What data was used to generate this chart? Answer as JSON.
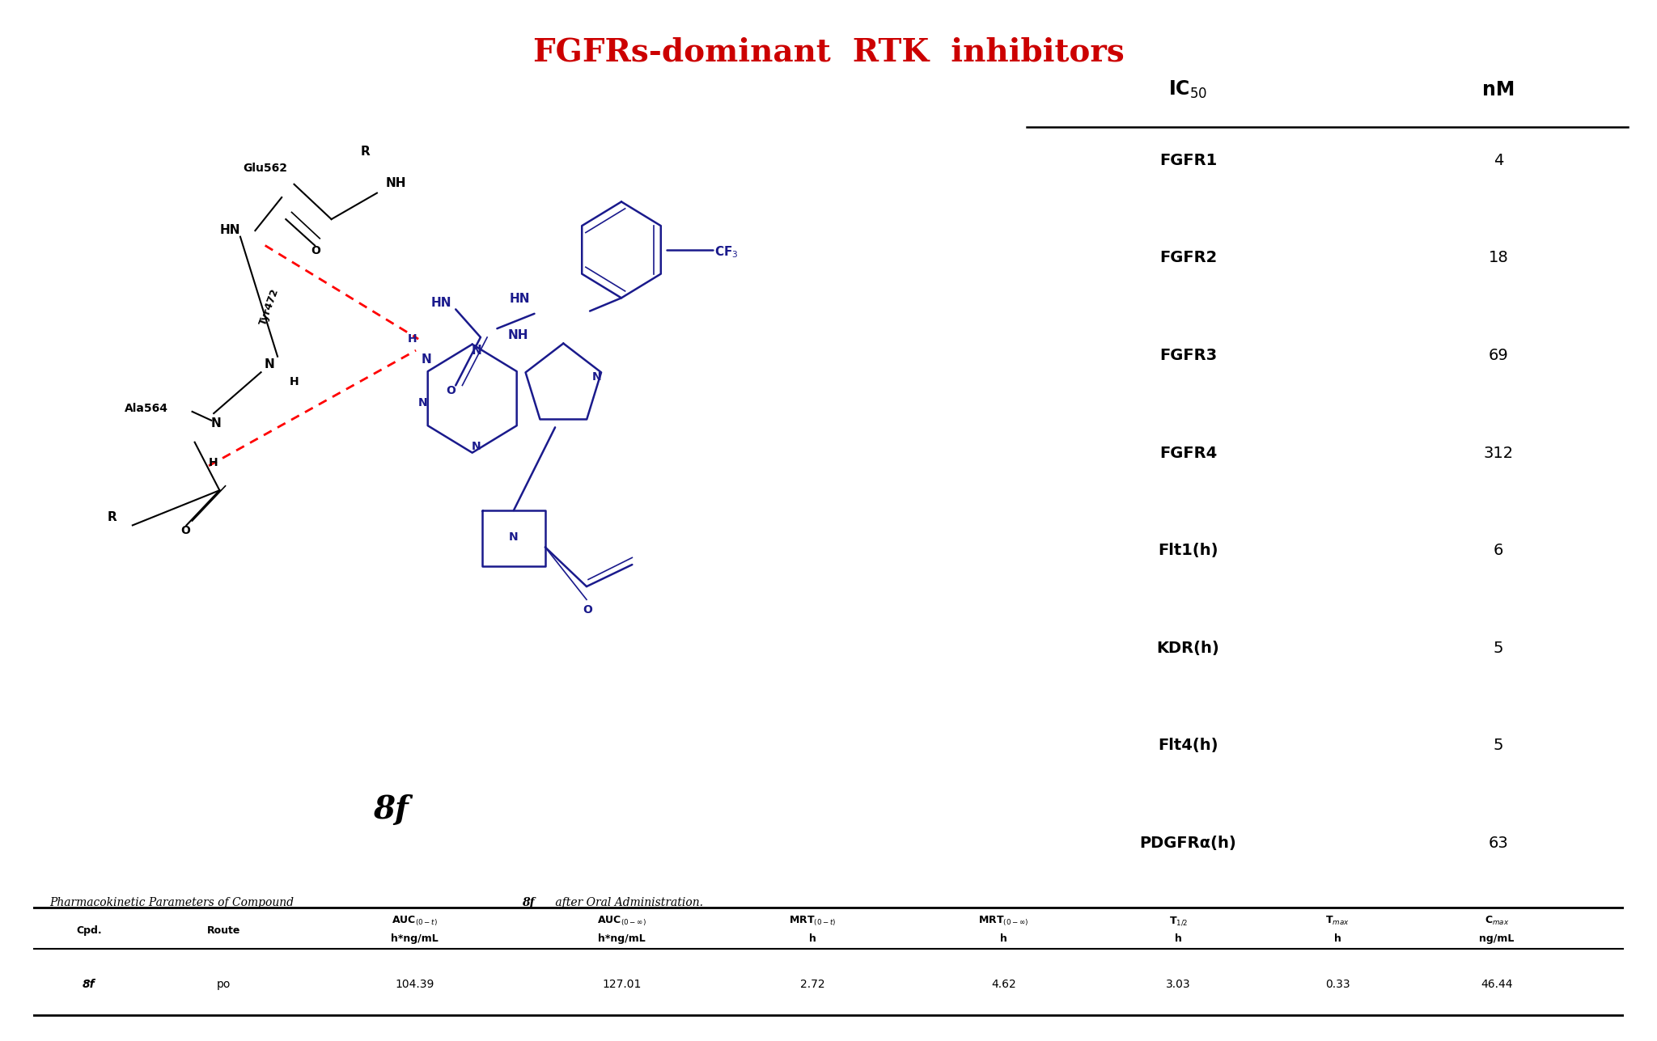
{
  "title": "FGFRs-dominant  RTK  inhibitors",
  "title_color": "#CC0000",
  "title_fontsize": 28,
  "ic50_rows": [
    [
      "FGFR1",
      "4"
    ],
    [
      "FGFR2",
      "18"
    ],
    [
      "FGFR3",
      "69"
    ],
    [
      "FGFR4",
      "312"
    ],
    [
      "Flt1(h)",
      "6"
    ],
    [
      "KDR(h)",
      "5"
    ],
    [
      "Flt4(h)",
      "5"
    ],
    [
      "PDGFRα(h)",
      "63"
    ]
  ],
  "pk_caption_normal": "Pharmacokinetic Parameters of Compound ",
  "pk_caption_bold": "8f",
  "pk_caption_end": " after Oral Administration.",
  "pk_row": [
    "8f",
    "po",
    "104.39",
    "127.01",
    "2.72",
    "4.62",
    "3.03",
    "0.33",
    "46.44"
  ],
  "orange_blob_color": "#D98B6A",
  "yellow_blob_color": "#E8D060",
  "blue_blob_color": "#90B8D8",
  "mol_color": "#1a1a8c",
  "black": "#000000",
  "red": "#CC0000",
  "compound_label": "8f",
  "background_color": "#FFFFFF"
}
